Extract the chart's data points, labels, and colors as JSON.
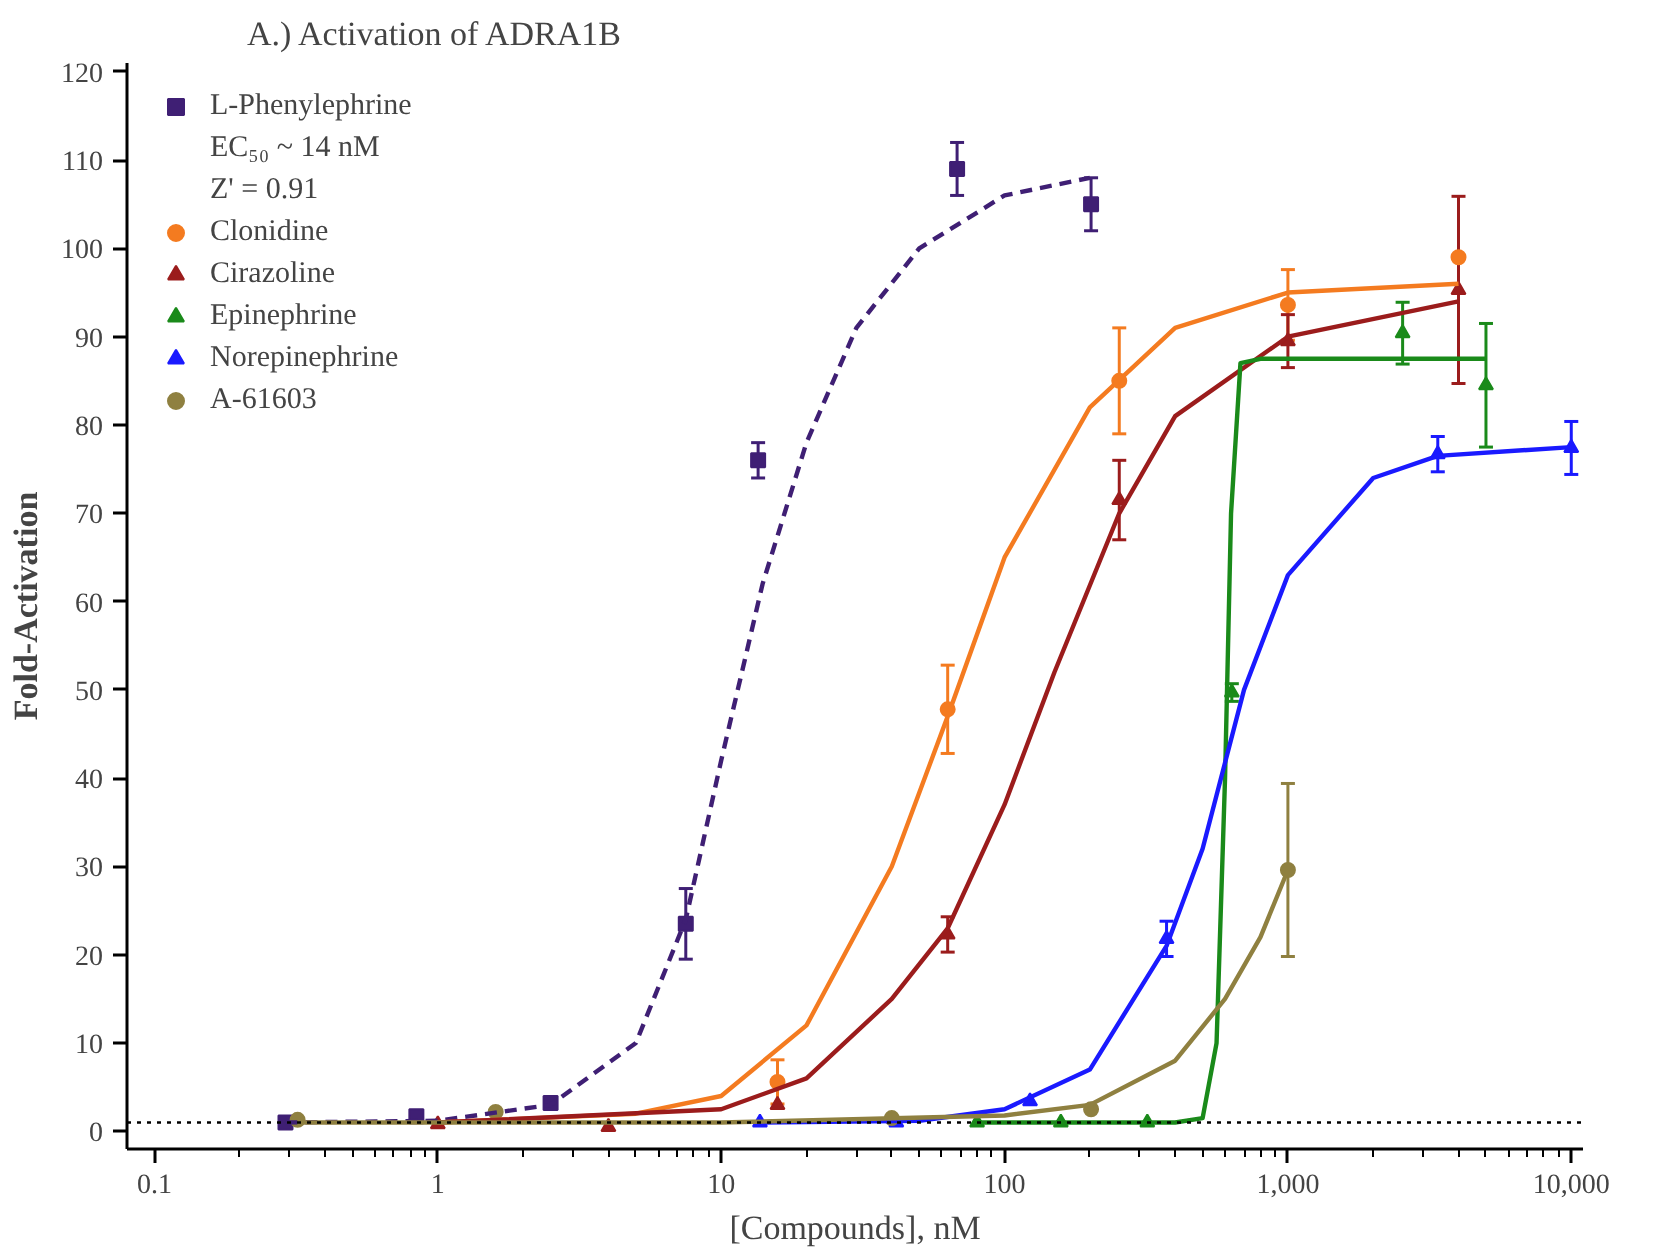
{
  "chart_data": {
    "type": "scatter",
    "title": "A.) Activation of ADRA1B",
    "xlabel": "[Compounds], nM",
    "ylabel": "Fold-Activation",
    "annotations": [
      "EC₅₀ ~ 14 nM",
      "Z' = 0.91"
    ],
    "log": "x",
    "xlim": [
      0.08,
      11000
    ],
    "xticks": [
      {
        "value": 0.1,
        "label": "0.1"
      },
      {
        "value": 1,
        "label": "1"
      },
      {
        "value": 10,
        "label": "10"
      },
      {
        "value": 100,
        "label": "100"
      },
      {
        "value": 1000,
        "label": "1,000"
      },
      {
        "value": 10000,
        "label": "10,000"
      }
    ],
    "ylim": [
      -2,
      121
    ],
    "yticks": [
      0,
      10,
      20,
      30,
      40,
      50,
      60,
      70,
      80,
      90,
      100,
      110,
      120
    ],
    "grid": false,
    "legend": "top left",
    "ref_lines": [
      {
        "axis": "y",
        "value": 1,
        "label": null,
        "color": "#000000",
        "line_style": "dotted"
      }
    ],
    "series": [
      {
        "name": "L-Phenylephrine",
        "marker": "square",
        "color": "#3f1f74",
        "x": [
          0.29,
          0.84,
          2.5,
          7.5,
          13.5,
          68,
          202
        ],
        "values": [
          1,
          1.7,
          3.2,
          23.5,
          76,
          109,
          105
        ],
        "errors": [
          null,
          null,
          null,
          4,
          2,
          3,
          3
        ]
      },
      {
        "name": "Clonidine",
        "marker": "circle",
        "color": "#f47b20",
        "x": [
          15.8,
          63,
          254,
          1000,
          4000
        ],
        "values": [
          5.6,
          47.8,
          85,
          93.6,
          99
        ],
        "errors": [
          2.5,
          5,
          6,
          4,
          null
        ]
      },
      {
        "name": "Cirazoline",
        "marker": "triangle",
        "color": "#9b1c1c",
        "x": [
          1,
          4,
          15.8,
          63,
          254,
          1000,
          4000
        ],
        "values": [
          0.8,
          0.5,
          3,
          22.3,
          71.5,
          89.5,
          95.3
        ],
        "errors": [
          null,
          null,
          null,
          2,
          4.5,
          3,
          10.6
        ]
      },
      {
        "name": "Epinephrine",
        "marker": "triangle",
        "color": "#1a8a1a",
        "x": [
          80,
          158,
          319,
          634,
          2540,
          5000
        ],
        "values": [
          1,
          1,
          1,
          49.7,
          90.4,
          84.5
        ],
        "errors": [
          null,
          null,
          null,
          1,
          3.5,
          7
        ]
      },
      {
        "name": "Norepinephrine",
        "marker": "triangle",
        "color": "#1a1aff",
        "x": [
          13.7,
          41.5,
          123,
          373,
          3380,
          10000
        ],
        "values": [
          1,
          1,
          3.4,
          21.8,
          76.7,
          77.4
        ],
        "errors": [
          null,
          null,
          null,
          2,
          2,
          3
        ]
      },
      {
        "name": "A-61603",
        "marker": "circle",
        "color": "#8f8040",
        "x": [
          0.32,
          1.6,
          40,
          202,
          1000
        ],
        "values": [
          1.3,
          2.2,
          1.5,
          2.5,
          29.6
        ],
        "errors": [
          null,
          null,
          null,
          null,
          9.8
        ]
      },
      {
        "type": "line",
        "line_style": "dashed",
        "color": "#3f1f74",
        "x": [
          0.29,
          1,
          2.5,
          5,
          7.5,
          10,
          14,
          20,
          30,
          50,
          100,
          200
        ],
        "values": [
          1,
          1.2,
          3,
          10,
          24,
          42,
          62,
          78,
          91,
          100,
          106,
          108
        ]
      },
      {
        "type": "line",
        "line_style": "solid",
        "color": "#f47b20",
        "x": [
          1,
          5,
          10,
          20,
          40,
          63,
          100,
          200,
          400,
          1000,
          4000
        ],
        "values": [
          1,
          2,
          4,
          12,
          30,
          47,
          65,
          82,
          91,
          95,
          96
        ]
      },
      {
        "type": "line",
        "line_style": "solid",
        "color": "#9b1c1c",
        "x": [
          1,
          10,
          20,
          40,
          63,
          100,
          150,
          254,
          400,
          1000,
          4000
        ],
        "values": [
          1,
          2.5,
          6,
          15,
          23,
          37,
          52,
          70,
          81,
          90,
          94
        ]
      },
      {
        "type": "line",
        "line_style": "solid",
        "color": "#1a8a1a",
        "x": [
          80,
          400,
          500,
          560,
          600,
          630,
          680,
          800,
          5000
        ],
        "values": [
          1,
          1,
          1.5,
          10,
          40,
          70,
          87,
          87.5,
          87.5
        ]
      },
      {
        "type": "line",
        "line_style": "solid",
        "color": "#1a1aff",
        "x": [
          13.7,
          50,
          100,
          200,
          373,
          500,
          700,
          1000,
          2000,
          3380,
          10000
        ],
        "values": [
          1,
          1.2,
          2.5,
          7,
          21,
          32,
          50,
          63,
          74,
          76.5,
          77.5
        ]
      },
      {
        "type": "line",
        "line_style": "solid",
        "color": "#8f8040",
        "x": [
          0.32,
          10,
          100,
          200,
          400,
          600,
          800,
          1000
        ],
        "values": [
          1,
          1,
          1.8,
          3,
          8,
          15,
          22,
          29.6
        ]
      }
    ]
  }
}
